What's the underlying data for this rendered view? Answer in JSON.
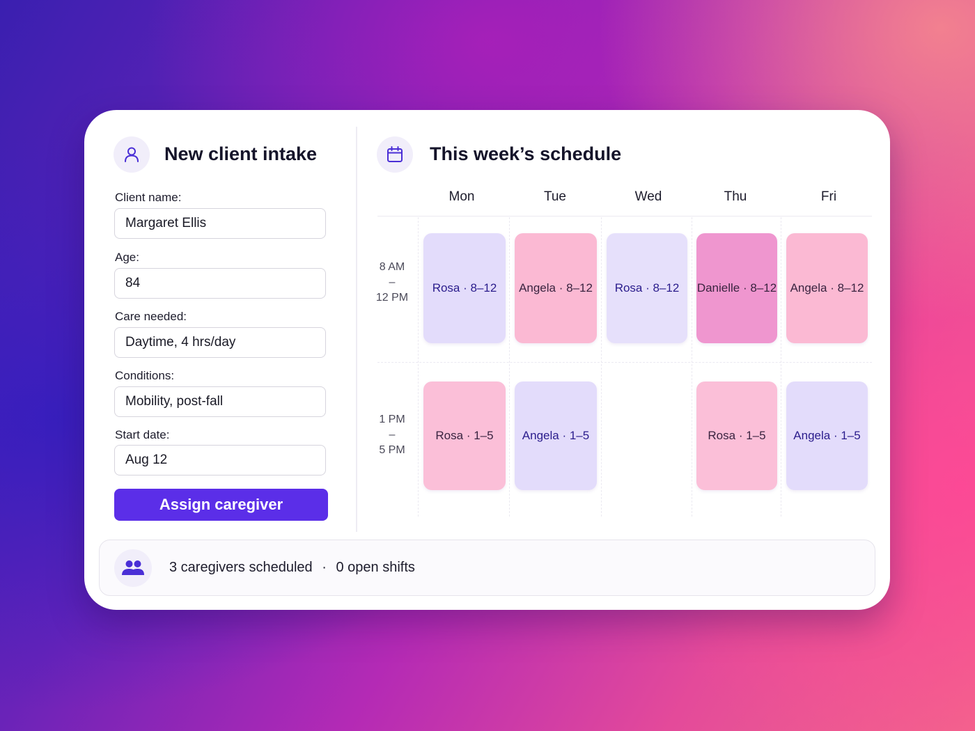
{
  "intake": {
    "title": "New client intake",
    "icon": "user-icon",
    "fields": [
      {
        "label": "Client name:",
        "value": "Margaret Ellis"
      },
      {
        "label": "Age:",
        "value": "84"
      },
      {
        "label": "Care needed:",
        "value": "Daytime, 4 hrs/day"
      },
      {
        "label": "Conditions:",
        "value": "Mobility, post-fall"
      },
      {
        "label": "Start date:",
        "value": "Aug 12"
      }
    ],
    "assign_button": "Assign caregiver"
  },
  "schedule": {
    "title": "This week’s schedule",
    "icon": "calendar-icon",
    "days": [
      "Mon",
      "Tue",
      "Wed",
      "Thu",
      "Fri"
    ],
    "slots": [
      {
        "start": "8 AM",
        "sep": "–",
        "end": "12 PM"
      },
      {
        "start": "1 PM",
        "sep": "–",
        "end": "5 PM"
      }
    ],
    "shifts": {
      "morning": {
        "mon": "Rosa · 8–12",
        "tue": "Angela · 8–12",
        "wed": "Rosa · 8–12",
        "thu": "Danielle · 8–12",
        "fri": "Angela · 8–12"
      },
      "afternoon": {
        "mon": "Rosa · 1–5",
        "tue": "Angela · 1–5",
        "thu": "Rosa · 1–5",
        "fri": "Angela · 1–5"
      }
    },
    "colors": {
      "lavender": "#e3dcfb",
      "pink": "#fbb9d3",
      "magenta": "#ef96cf",
      "lavender_text": "#2a1c8c",
      "pink_text": "#3a2440"
    }
  },
  "footer": {
    "icon": "people-icon",
    "caregivers": "3 caregivers scheduled",
    "separator": "·",
    "open_shifts": "0 open shifts"
  },
  "accent": "#5b2ee8"
}
